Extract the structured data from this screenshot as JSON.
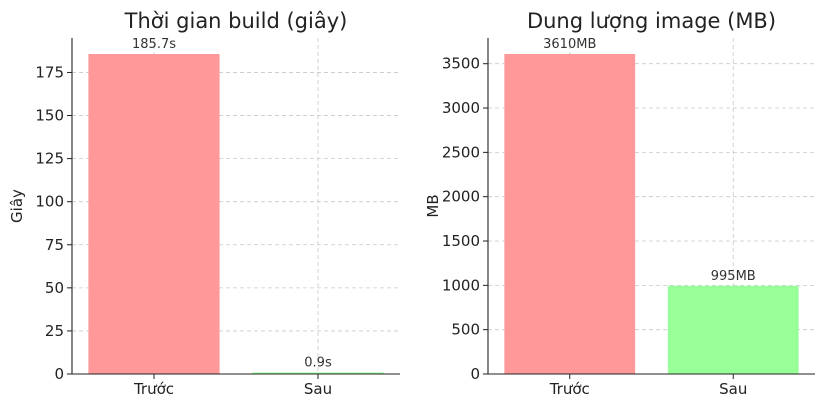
{
  "chart_data": [
    {
      "type": "bar",
      "title": "Thời gian build (giây)",
      "xlabel": "",
      "ylabel": "Giây",
      "categories": [
        "Trước",
        "Sau"
      ],
      "values": [
        185.7,
        0.9
      ],
      "data_labels": [
        "185.7s",
        "0.9s"
      ],
      "colors": [
        "#ff9999",
        "#99ff99"
      ],
      "ylim": [
        0,
        195
      ],
      "yticks": [
        0,
        25,
        50,
        75,
        100,
        125,
        150,
        175
      ],
      "grid": true,
      "legend": "none"
    },
    {
      "type": "bar",
      "title": "Dung lượng image (MB)",
      "xlabel": "",
      "ylabel": "MB",
      "categories": [
        "Trước",
        "Sau"
      ],
      "values": [
        3610,
        995
      ],
      "data_labels": [
        "3610MB",
        "995MB"
      ],
      "colors": [
        "#ff9999",
        "#99ff99"
      ],
      "ylim": [
        0,
        3790
      ],
      "yticks": [
        0,
        500,
        1000,
        1500,
        2000,
        2500,
        3000,
        3500
      ],
      "grid": true,
      "legend": "none"
    }
  ]
}
